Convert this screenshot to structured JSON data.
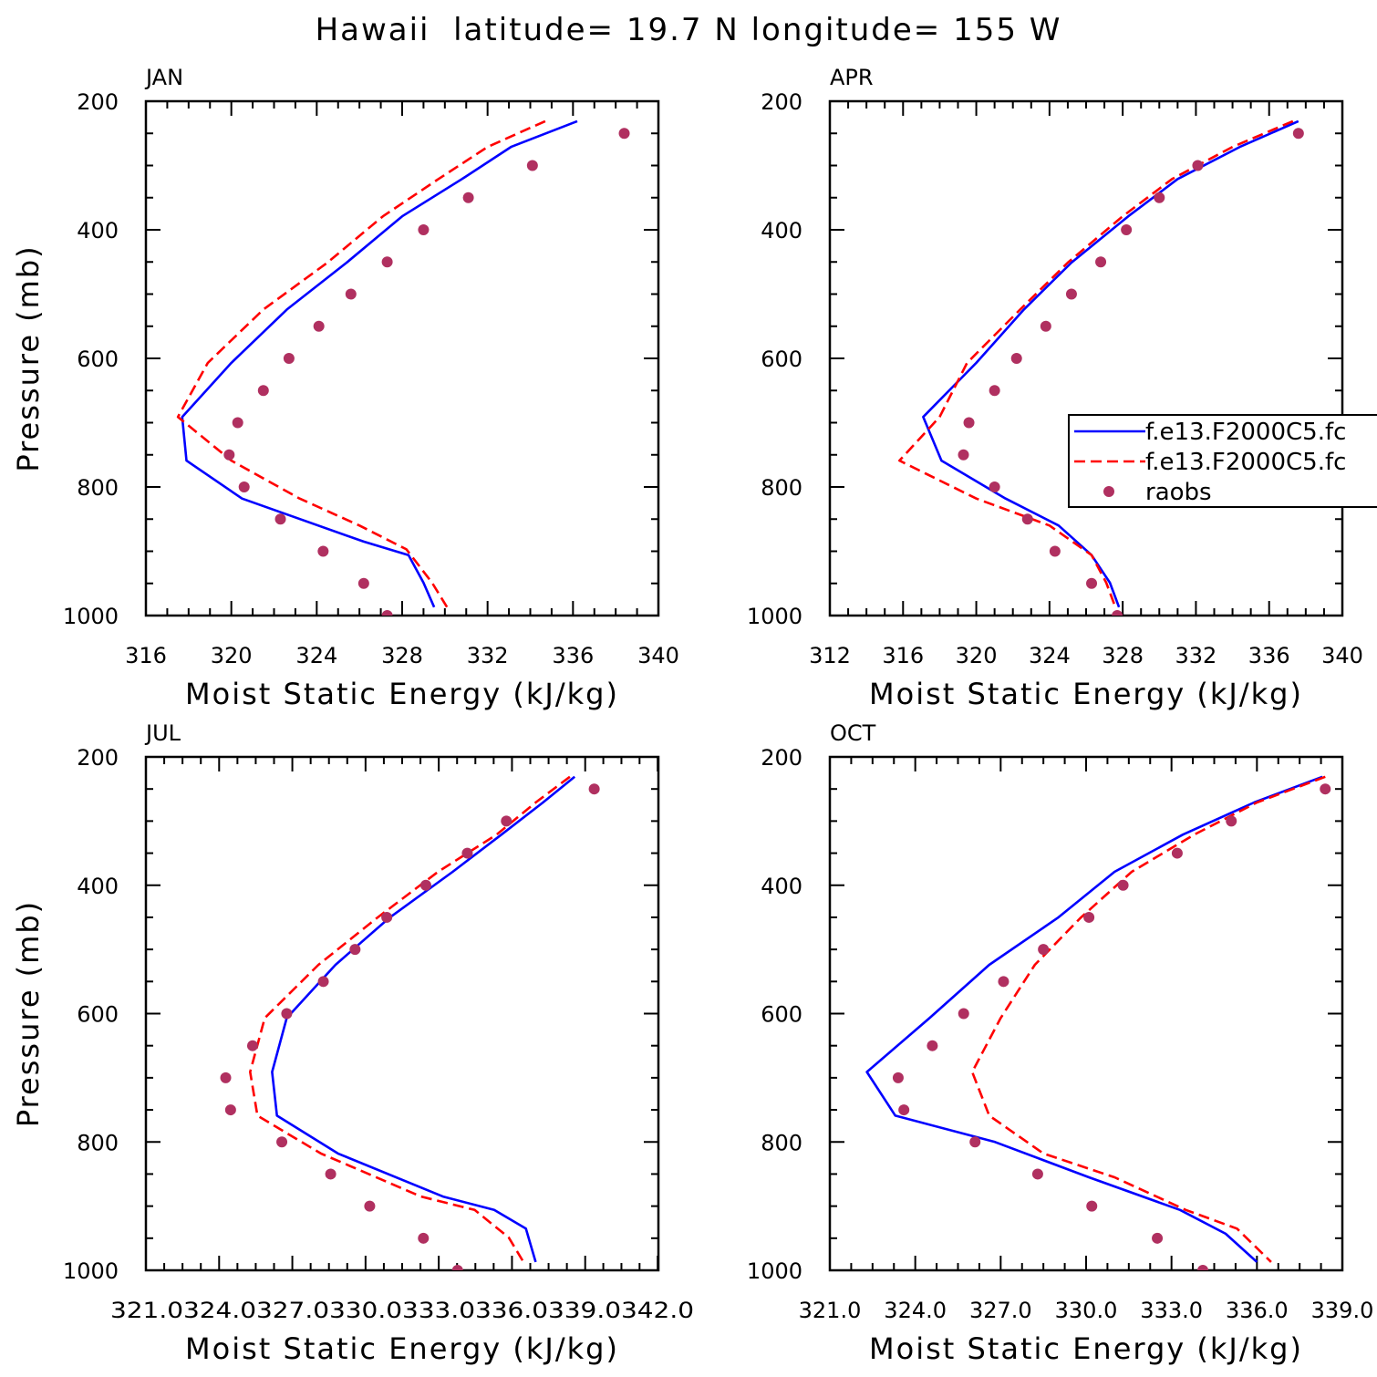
{
  "figure_title": "Hawaii  latitude= 19.7 N longitude= 155 W",
  "colors": {
    "model1": "#0000ff",
    "model2": "#ff0000",
    "raobs": "#b03060"
  },
  "chart_data": [
    {
      "type": "line",
      "panel": "JAN",
      "xlabel": "Moist Static Energy (kJ/kg)",
      "ylabel": "Pressure (mb)",
      "xlim": [
        316,
        340
      ],
      "ylim": [
        1000,
        200
      ],
      "x_ticks": [
        316,
        320,
        324,
        328,
        332,
        336,
        340
      ],
      "x_tick_labels": [
        "316",
        "320",
        "324",
        "328",
        "332",
        "336",
        "340"
      ],
      "y_ticks": [
        200,
        400,
        600,
        800,
        1000
      ],
      "y_tick_labels": [
        "200",
        "400",
        "600",
        "800",
        "1000"
      ],
      "legend": null,
      "series": [
        {
          "name": "f.e13.F2000C5.fc (solid)",
          "style": "solid",
          "color": "#0000ff",
          "x": [
            336.2,
            333.1,
            330.8,
            328.0,
            325.4,
            322.6,
            320.0,
            317.7,
            317.9,
            320.5,
            326.2,
            328.3,
            329.0,
            329.5
          ],
          "p": [
            231,
            271,
            321,
            379,
            451,
            524,
            607,
            691,
            759,
            818,
            885,
            906,
            949,
            987
          ]
        },
        {
          "name": "f.e13.F2000C5.fc (dashed)",
          "style": "dashed",
          "color": "#ff0000",
          "x": [
            334.7,
            332.0,
            329.7,
            327.1,
            324.5,
            321.5,
            318.9,
            317.5,
            320.0,
            323.2,
            326.0,
            328.2,
            329.4,
            330.1
          ],
          "p": [
            231,
            271,
            321,
            379,
            451,
            524,
            607,
            691,
            759,
            818,
            860,
            897,
            949,
            987
          ]
        },
        {
          "name": "raobs",
          "style": "markers",
          "color": "#b03060",
          "x": [
            338.4,
            334.1,
            331.1,
            329.0,
            327.3,
            325.6,
            324.1,
            322.7,
            321.5,
            320.3,
            319.9,
            320.6,
            322.3,
            324.3,
            326.2,
            327.3
          ],
          "p": [
            250,
            300,
            350,
            400,
            450,
            500,
            550,
            600,
            650,
            700,
            750,
            800,
            850,
            900,
            950,
            1000
          ]
        }
      ]
    },
    {
      "type": "line",
      "panel": "APR",
      "xlabel": "Moist Static Energy (kJ/kg)",
      "ylabel": "",
      "xlim": [
        312,
        340
      ],
      "ylim": [
        1000,
        200
      ],
      "x_ticks": [
        312,
        316,
        320,
        324,
        328,
        332,
        336,
        340
      ],
      "x_tick_labels": [
        "312",
        "316",
        "320",
        "324",
        "328",
        "332",
        "336",
        "340"
      ],
      "y_ticks": [
        200,
        400,
        600,
        800,
        1000
      ],
      "y_tick_labels": [
        "200",
        "400",
        "600",
        "800",
        "1000"
      ],
      "legend": {
        "placement": "middle-right",
        "entries": [
          {
            "label": "f.e13.F2000C5.fc",
            "style": "solid",
            "color": "#0000ff"
          },
          {
            "label": "f.e13.F2000C5.fc",
            "style": "dashed",
            "color": "#ff0000"
          },
          {
            "label": "raobs",
            "style": "markers",
            "color": "#b03060"
          }
        ]
      },
      "series": [
        {
          "name": "f.e13.F2000C5.fc (solid)",
          "style": "solid",
          "color": "#0000ff",
          "x": [
            337.6,
            334.4,
            331.0,
            328.3,
            325.2,
            322.6,
            320.0,
            317.1,
            318.1,
            321.6,
            324.5,
            326.3,
            327.3,
            327.8
          ],
          "p": [
            231,
            271,
            321,
            379,
            451,
            524,
            607,
            691,
            759,
            818,
            860,
            906,
            949,
            987
          ]
        },
        {
          "name": "f.e13.F2000C5.fc (dashed)",
          "style": "dashed",
          "color": "#ff0000",
          "x": [
            337.3,
            334.0,
            330.7,
            328.0,
            325.0,
            322.4,
            319.5,
            318.0,
            315.8,
            320.0,
            324.0,
            326.3,
            327.1,
            327.6
          ],
          "p": [
            231,
            271,
            321,
            379,
            451,
            524,
            607,
            691,
            759,
            818,
            860,
            906,
            949,
            987
          ]
        },
        {
          "name": "raobs",
          "style": "markers",
          "color": "#b03060",
          "x": [
            337.6,
            332.1,
            330.0,
            328.2,
            326.8,
            325.2,
            323.8,
            322.2,
            321.0,
            319.6,
            319.3,
            321.0,
            322.8,
            324.3,
            326.3,
            327.7
          ],
          "p": [
            250,
            300,
            350,
            400,
            450,
            500,
            550,
            600,
            650,
            700,
            750,
            800,
            850,
            900,
            950,
            1000
          ]
        }
      ]
    },
    {
      "type": "line",
      "panel": "JUL",
      "xlabel": "Moist Static Energy (kJ/kg)",
      "ylabel": "Pressure (mb)",
      "xlim": [
        321.03,
        342.03
      ],
      "ylim": [
        1000,
        200
      ],
      "x_ticks": [
        321.03,
        324.03,
        327.03,
        330.03,
        333.03,
        336.03,
        339.03,
        342.0
      ],
      "x_tick_labels": [
        "321.0",
        "324.0",
        "327.0",
        "330.0",
        "333.0",
        "336.0",
        "339.0",
        "342.0"
      ],
      "x_tick_label_text": "321.0324.0327.0330.0333.0336.0339.0342.0",
      "y_ticks": [
        200,
        400,
        600,
        800,
        1000
      ],
      "y_tick_labels": [
        "200",
        "400",
        "600",
        "800",
        "1000"
      ],
      "legend": null,
      "series": [
        {
          "name": "f.e13.F2000C5.fc (solid)",
          "style": "solid",
          "color": "#0000ff",
          "x": [
            338.6,
            337.3,
            335.6,
            333.6,
            331.0,
            328.8,
            326.8,
            326.2,
            326.4,
            328.9,
            333.2,
            335.3,
            336.6,
            337.0
          ],
          "p": [
            231,
            271,
            321,
            379,
            451,
            524,
            607,
            691,
            759,
            818,
            885,
            906,
            935,
            987
          ]
        },
        {
          "name": "f.e13.F2000C5.fc (dashed)",
          "style": "dashed",
          "color": "#ff0000",
          "x": [
            338.4,
            337.0,
            335.4,
            333.0,
            330.5,
            328.1,
            325.9,
            325.3,
            325.6,
            328.2,
            332.3,
            334.5,
            335.9,
            336.5
          ],
          "p": [
            231,
            271,
            321,
            379,
            451,
            524,
            607,
            691,
            759,
            818,
            885,
            906,
            949,
            987
          ]
        },
        {
          "name": "raobs",
          "style": "markers",
          "color": "#b03060",
          "x": [
            339.4,
            335.8,
            334.2,
            332.5,
            330.9,
            329.6,
            328.3,
            326.8,
            325.4,
            324.3,
            324.5,
            326.6,
            328.6,
            330.2,
            332.4,
            333.8
          ],
          "p": [
            250,
            300,
            350,
            400,
            450,
            500,
            550,
            600,
            650,
            700,
            750,
            800,
            850,
            900,
            950,
            1000
          ]
        }
      ]
    },
    {
      "type": "line",
      "panel": "OCT",
      "xlabel": "Moist Static Energy (kJ/kg)",
      "ylabel": "",
      "xlim": [
        321.0,
        339.0
      ],
      "ylim": [
        1000,
        200
      ],
      "x_ticks": [
        321,
        324,
        327,
        330,
        333,
        336,
        339
      ],
      "x_tick_labels": [
        "321.0",
        "324.0",
        "327.0",
        "330.0",
        "333.0",
        "336.0",
        "339.0"
      ],
      "y_ticks": [
        200,
        400,
        600,
        800,
        1000
      ],
      "y_tick_labels": [
        "200",
        "400",
        "600",
        "800",
        "1000"
      ],
      "legend": null,
      "series": [
        {
          "name": "f.e13.F2000C5.fc (solid)",
          "style": "solid",
          "color": "#0000ff",
          "x": [
            338.3,
            335.9,
            333.4,
            331.0,
            329.0,
            326.6,
            324.5,
            322.3,
            323.3,
            326.8,
            330.1,
            333.3,
            334.9,
            336.0
          ],
          "p": [
            231,
            271,
            321,
            379,
            451,
            524,
            607,
            691,
            759,
            800,
            855,
            906,
            943,
            987
          ]
        },
        {
          "name": "f.e13.F2000C5.fc (dashed)",
          "style": "dashed",
          "color": "#ff0000",
          "x": [
            338.4,
            336.0,
            333.8,
            331.6,
            329.8,
            328.2,
            327.0,
            326.0,
            326.6,
            328.5,
            331.0,
            333.5,
            335.3,
            336.5
          ],
          "p": [
            231,
            271,
            321,
            379,
            451,
            524,
            607,
            691,
            759,
            818,
            855,
            906,
            935,
            987
          ]
        },
        {
          "name": "raobs",
          "style": "markers",
          "color": "#b03060",
          "x": [
            338.4,
            335.1,
            333.2,
            331.3,
            330.1,
            328.5,
            327.1,
            325.7,
            324.6,
            323.4,
            323.6,
            326.1,
            328.3,
            330.2,
            332.5,
            334.1
          ],
          "p": [
            250,
            300,
            350,
            400,
            450,
            500,
            550,
            600,
            650,
            700,
            750,
            800,
            850,
            900,
            950,
            1000
          ]
        }
      ]
    }
  ]
}
